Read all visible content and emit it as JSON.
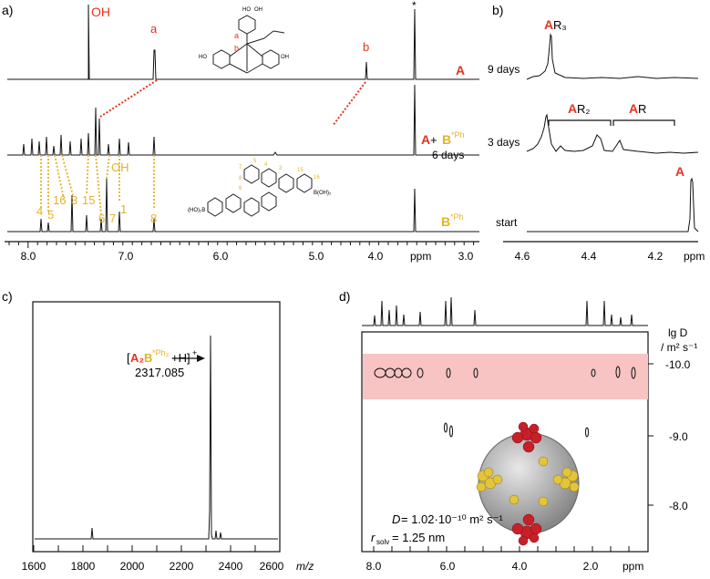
{
  "panel_a": {
    "label": "a)",
    "peak_labels": {
      "oh": "OH",
      "a": "a",
      "b": "b",
      "star": "*"
    },
    "trace_labels": {
      "A": "A",
      "A_plus": "A",
      "plus": " + ",
      "B": "B",
      "B_sup": "*Ph",
      "days": "6 days"
    },
    "b_peak_numbers": {
      "n4": "4",
      "n5": "5",
      "n16": "16",
      "n3": "3",
      "n15": "15",
      "n6": "6",
      "n7": "7",
      "n1": "1",
      "n8": "8",
      "oh": "OH"
    },
    "struct_a_labels": {
      "a": "a",
      "b": "b",
      "ho": "HO",
      "oh": "OH"
    },
    "struct_b_labels": {
      "n3": "3",
      "n4": "4",
      "n5": "5",
      "n6": "6",
      "n7": "7",
      "n8": "8",
      "n15": "15",
      "n16": "16",
      "boh_left": "(HO)₂B",
      "boh_right": "B(OH)₂"
    },
    "axis": {
      "ticks": [
        "8.0",
        "7.0",
        "6.0",
        "5.0",
        "4.0",
        "3.0"
      ],
      "unit": "ppm"
    }
  },
  "panel_b": {
    "label": "b)",
    "traces": {
      "t9": "9 days",
      "t3": "3 days",
      "start": "start"
    },
    "peaks": {
      "ar3_a": "A",
      "ar3_r": "R₃",
      "ar2_a": "A",
      "ar2_r": "R₂",
      "ar_a": "A",
      "ar_r": "R",
      "a": "A"
    },
    "axis": {
      "ticks": [
        "4.6",
        "4.4",
        "4.2"
      ],
      "unit": "ppm"
    }
  },
  "panel_c": {
    "label": "c)",
    "annotation": {
      "bracket_open": "[",
      "a2": "A₂",
      "b": "B",
      "b_sup": "*Ph₃",
      "rest": "+H]",
      "charge": "+",
      "mass": "2317.085"
    },
    "axis": {
      "ticks": [
        "1600",
        "1800",
        "2000",
        "2200",
        "2400",
        "2600"
      ],
      "unit": "m/z"
    }
  },
  "panel_d": {
    "label": "d)",
    "y_axis": {
      "title_lg": "lg D",
      "title_unit": "/ m² s⁻¹",
      "ticks": [
        "-10.0",
        "-9.0",
        "-8.0"
      ]
    },
    "x_axis": {
      "ticks": [
        "8.0",
        "6.0",
        "4.0",
        "2.0"
      ],
      "unit": "ppm"
    },
    "annotation": {
      "d_label": "D",
      "d_value": " = 1.02·10⁻¹⁰ m² s⁻¹",
      "r_label": "r",
      "r_sub": "solv",
      "r_value": " = 1.25 nm"
    }
  },
  "colors": {
    "red": "#e8321e",
    "yellow": "#e3b22a",
    "pink": "#f7c3c3",
    "black": "#111111"
  }
}
